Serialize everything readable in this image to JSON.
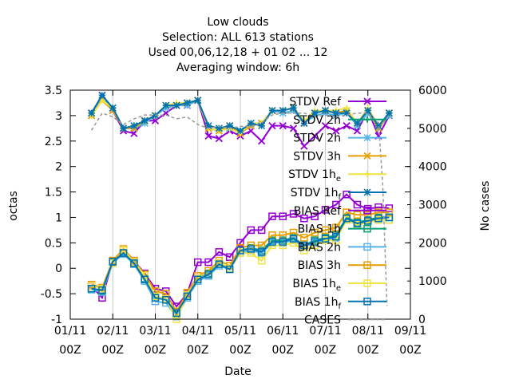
{
  "chart_data": {
    "type": "line",
    "title_lines": [
      "Low clouds",
      "Selection: ALL    613 stations",
      "Used  00,06,12,18 + 01 02 ... 12",
      "Averaging window:  6h"
    ],
    "xlabel": "Date",
    "ylabel": "octas",
    "y2label": "No cases",
    "x_ticks": [
      {
        "x": 1,
        "l1": "01/11",
        "l2": "00Z"
      },
      {
        "x": 2,
        "l1": "02/11",
        "l2": "00Z"
      },
      {
        "x": 3,
        "l1": "03/11",
        "l2": "00Z"
      },
      {
        "x": 4,
        "l1": "04/11",
        "l2": "00Z"
      },
      {
        "x": 5,
        "l1": "05/11",
        "l2": "00Z"
      },
      {
        "x": 6,
        "l1": "06/11",
        "l2": "00Z"
      },
      {
        "x": 7,
        "l1": "07/11",
        "l2": "00Z"
      },
      {
        "x": 8,
        "l1": "08/11",
        "l2": "00Z"
      },
      {
        "x": 9,
        "l1": "09/11",
        "l2": "00Z"
      }
    ],
    "xlim": [
      1,
      9
    ],
    "ylim": [
      -1,
      3.5
    ],
    "y_ticks": [
      "-1",
      "-0.5",
      "0",
      "0.5",
      "1",
      "1.5",
      "2",
      "2.5",
      "3",
      "3.5"
    ],
    "y2lim": [
      0,
      6000
    ],
    "y2_ticks": [
      "0",
      "1000",
      "2000",
      "3000",
      "4000",
      "5000",
      "6000"
    ],
    "legend_position": "inside-right",
    "x": [
      1.5,
      1.75,
      2,
      2.25,
      2.5,
      2.75,
      3,
      3.25,
      3.5,
      3.75,
      4,
      4.25,
      4.5,
      4.75,
      5,
      5.25,
      5.5,
      5.75,
      6,
      6.25,
      6.5,
      6.75,
      7,
      7.25,
      7.5,
      7.75,
      8,
      8.25,
      8.5
    ],
    "series": [
      {
        "name": "STDV Ref",
        "color": "#9400d3",
        "marker": "x",
        "axis": "y1",
        "values": [
          3.05,
          3.4,
          3.1,
          2.7,
          2.65,
          2.9,
          2.9,
          3.05,
          3.2,
          3.2,
          3.3,
          2.6,
          2.55,
          2.7,
          2.6,
          2.7,
          2.5,
          2.8,
          2.8,
          2.75,
          2.4,
          2.6,
          2.8,
          2.7,
          2.8,
          2.7,
          3.1,
          2.6,
          3.0
        ]
      },
      {
        "name": "STDV 2h",
        "color": "#009e73",
        "marker": "plus",
        "axis": "y1",
        "values": [
          3.05,
          3.35,
          3.15,
          2.75,
          2.8,
          2.9,
          3.0,
          3.2,
          3.2,
          3.25,
          3.3,
          2.8,
          2.75,
          2.8,
          2.7,
          2.85,
          2.85,
          3.1,
          3.1,
          3.15,
          2.9,
          3.05,
          3.1,
          3.05,
          3.1,
          2.85,
          3.1,
          2.8,
          3.05
        ]
      },
      {
        "name": "STDV 2h",
        "color": "#56b4e9",
        "marker": "star",
        "axis": "y1",
        "values": [
          3.05,
          3.35,
          3.15,
          2.75,
          2.75,
          2.85,
          3.0,
          3.15,
          3.2,
          3.2,
          3.3,
          2.75,
          2.7,
          2.75,
          2.7,
          2.8,
          2.85,
          3.1,
          3.05,
          3.1,
          2.85,
          3.0,
          3.05,
          3.0,
          3.05,
          2.8,
          3.05,
          2.75,
          3.0
        ]
      },
      {
        "name": "STDV 3h",
        "color": "#e69f00",
        "marker": "x",
        "axis": "y1",
        "values": [
          3.0,
          3.3,
          3.1,
          2.75,
          2.75,
          2.9,
          3.0,
          3.2,
          3.2,
          3.25,
          3.3,
          2.75,
          2.7,
          2.8,
          2.65,
          2.8,
          2.85,
          3.1,
          3.1,
          3.15,
          2.85,
          3.05,
          3.1,
          3.05,
          3.1,
          2.85,
          3.1,
          2.75,
          3.05
        ]
      },
      {
        "name": "STDV 1h",
        "sub": "e",
        "color": "#f0e442",
        "marker": "plus",
        "axis": "y1",
        "values": [
          3.0,
          3.3,
          3.15,
          2.75,
          2.8,
          2.9,
          3.0,
          3.2,
          3.25,
          3.25,
          3.3,
          2.75,
          2.7,
          2.75,
          2.65,
          2.85,
          2.85,
          3.1,
          3.1,
          3.15,
          2.9,
          3.1,
          3.1,
          3.1,
          3.15,
          2.85,
          3.15,
          2.8,
          3.05
        ]
      },
      {
        "name": "STDV 1h",
        "sub": "f",
        "color": "#0072b2",
        "marker": "star",
        "axis": "y1",
        "values": [
          3.05,
          3.4,
          3.15,
          2.75,
          2.8,
          2.9,
          3.0,
          3.2,
          3.2,
          3.25,
          3.3,
          2.8,
          2.75,
          2.8,
          2.7,
          2.85,
          2.8,
          3.1,
          3.1,
          3.15,
          2.85,
          3.05,
          3.1,
          3.05,
          3.05,
          2.85,
          3.1,
          2.8,
          3.05
        ]
      },
      {
        "name": "BIAS Ref",
        "color": "#9400d3",
        "marker": "square",
        "axis": "y1",
        "values": [
          -0.35,
          -0.58,
          0.15,
          0.3,
          0.15,
          -0.1,
          -0.4,
          -0.45,
          -0.75,
          -0.5,
          0.12,
          0.12,
          0.32,
          0.22,
          0.5,
          0.75,
          0.75,
          1.02,
          1.02,
          1.07,
          0.98,
          1.02,
          1.15,
          1.25,
          1.45,
          1.25,
          1.17,
          1.2,
          1.18
        ]
      },
      {
        "name": "BIAS 1h",
        "color": "#009e73",
        "marker": "square",
        "axis": "y1",
        "values": [
          -0.4,
          -0.45,
          0.12,
          0.3,
          0.1,
          -0.2,
          -0.55,
          -0.6,
          -0.9,
          -0.55,
          -0.2,
          -0.1,
          0.1,
          0.0,
          0.35,
          0.4,
          0.35,
          0.55,
          0.55,
          0.6,
          0.45,
          0.55,
          0.6,
          0.65,
          1.0,
          0.9,
          0.95,
          1.0,
          1.0
        ]
      },
      {
        "name": "BIAS 2h",
        "color": "#56b4e9",
        "marker": "square",
        "axis": "y1",
        "values": [
          -0.42,
          -0.47,
          0.1,
          0.28,
          0.08,
          -0.25,
          -0.65,
          -0.68,
          -0.95,
          -0.58,
          -0.25,
          -0.15,
          0.05,
          -0.02,
          0.3,
          0.35,
          0.3,
          0.5,
          0.5,
          0.55,
          0.42,
          0.5,
          0.55,
          0.6,
          0.95,
          0.85,
          0.9,
          0.95,
          0.95
        ]
      },
      {
        "name": "BIAS 3h",
        "color": "#e69f00",
        "marker": "square",
        "axis": "y1",
        "values": [
          -0.32,
          -0.38,
          0.15,
          0.38,
          0.15,
          -0.12,
          -0.45,
          -0.5,
          -0.85,
          -0.48,
          -0.15,
          -0.05,
          0.15,
          0.05,
          0.4,
          0.45,
          0.45,
          0.65,
          0.65,
          0.7,
          0.6,
          0.7,
          0.75,
          0.8,
          1.1,
          1.05,
          1.05,
          1.1,
          1.1
        ]
      },
      {
        "name": "BIAS 1h",
        "sub": "e",
        "color": "#f0e442",
        "marker": "square",
        "axis": "y1",
        "values": [
          -0.35,
          -0.4,
          0.1,
          0.35,
          0.12,
          -0.15,
          -0.55,
          -0.6,
          -1.0,
          -0.52,
          -0.2,
          -0.12,
          0.1,
          0.0,
          0.3,
          0.3,
          0.15,
          0.45,
          0.45,
          0.5,
          0.35,
          0.45,
          0.55,
          0.55,
          0.95,
          0.85,
          0.9,
          0.95,
          0.95
        ]
      },
      {
        "name": "BIAS 1h",
        "sub": "f",
        "color": "#0072b2",
        "marker": "square",
        "axis": "y1",
        "values": [
          -0.4,
          -0.43,
          0.13,
          0.3,
          0.1,
          -0.22,
          -0.58,
          -0.62,
          -0.88,
          -0.55,
          -0.22,
          -0.12,
          0.08,
          -0.02,
          0.35,
          0.38,
          0.32,
          0.52,
          0.52,
          0.58,
          0.45,
          0.52,
          0.58,
          0.62,
          0.98,
          0.88,
          0.93,
          0.98,
          1.0
        ]
      },
      {
        "name": "CASES",
        "color": "#999999",
        "dashed": true,
        "axis": "y2",
        "x": [
          1.5,
          1.75,
          2,
          2.25,
          2.5,
          2.75,
          3,
          3.25,
          3.5,
          3.75,
          4,
          4.25,
          4.5,
          4.75,
          5,
          5.25,
          5.5,
          5.75,
          6,
          6.25,
          6.5,
          6.75,
          7,
          7.25,
          7.5,
          7.75,
          8,
          8.25,
          8.35,
          8.45
        ],
        "values": [
          4950,
          5400,
          5300,
          5100,
          5250,
          5350,
          5350,
          5350,
          5250,
          5300,
          5100,
          5000,
          5050,
          5000,
          5050,
          5050,
          5150,
          5350,
          5400,
          5400,
          5400,
          5300,
          5350,
          5300,
          5350,
          5400,
          5400,
          5150,
          3500,
          350
        ]
      }
    ]
  }
}
